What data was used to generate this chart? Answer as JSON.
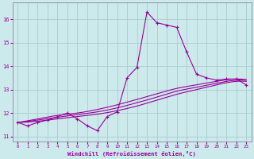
{
  "xlabel": "Windchill (Refroidissement éolien,°C)",
  "xlim": [
    -0.5,
    23.5
  ],
  "ylim": [
    10.8,
    16.7
  ],
  "yticks": [
    11,
    12,
    13,
    14,
    15,
    16
  ],
  "xticks": [
    0,
    1,
    2,
    3,
    4,
    5,
    6,
    7,
    8,
    9,
    10,
    11,
    12,
    13,
    14,
    15,
    16,
    17,
    18,
    19,
    20,
    21,
    22,
    23
  ],
  "bg_color": "#cce9ec",
  "line_color": "#990099",
  "grid_color": "#aacccc",
  "curve1_x": [
    0,
    1,
    2,
    3,
    4,
    5,
    6,
    7,
    8,
    9,
    10,
    11,
    12,
    13,
    14,
    15,
    16,
    17,
    18,
    19,
    20,
    21,
    22,
    23
  ],
  "curve1_y": [
    11.6,
    11.45,
    11.6,
    11.7,
    11.85,
    12.0,
    11.75,
    11.45,
    11.25,
    11.85,
    12.05,
    13.5,
    13.95,
    16.3,
    15.85,
    15.75,
    15.65,
    14.6,
    13.65,
    13.5,
    13.4,
    13.45,
    13.45,
    13.2
  ],
  "smooth2_pts_x": [
    0,
    2,
    4,
    6,
    8,
    10,
    12,
    14,
    16,
    18,
    20,
    22,
    23
  ],
  "smooth2_pts_y": [
    11.6,
    11.65,
    11.75,
    11.85,
    11.95,
    12.1,
    12.3,
    12.55,
    12.8,
    13.0,
    13.2,
    13.35,
    13.35
  ],
  "smooth3_pts_x": [
    0,
    2,
    4,
    6,
    8,
    10,
    12,
    14,
    16,
    18,
    20,
    22,
    23
  ],
  "smooth3_pts_y": [
    11.6,
    11.7,
    11.82,
    11.93,
    12.05,
    12.22,
    12.44,
    12.68,
    12.93,
    13.1,
    13.27,
    13.4,
    13.4
  ],
  "smooth4_pts_x": [
    0,
    2,
    4,
    6,
    8,
    10,
    12,
    14,
    16,
    18,
    20,
    22,
    23
  ],
  "smooth4_pts_y": [
    11.6,
    11.75,
    11.9,
    12.0,
    12.15,
    12.35,
    12.58,
    12.82,
    13.05,
    13.2,
    13.35,
    13.45,
    13.42
  ]
}
